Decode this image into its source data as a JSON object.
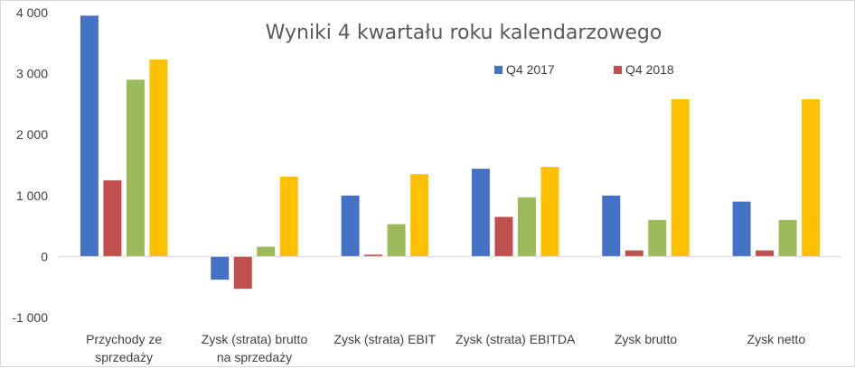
{
  "chart_data": {
    "type": "bar",
    "title": "Wyniki 4 kwartału roku kalendarzowego",
    "categories": [
      [
        "Przychody ze",
        "sprzedaży"
      ],
      [
        "Zysk (strata) brutto",
        "na sprzedaży"
      ],
      [
        "Zysk (strata) EBIT"
      ],
      [
        "Zysk (strata) EBITDA"
      ],
      [
        "Zysk brutto"
      ],
      [
        "Zysk netto"
      ]
    ],
    "series": [
      {
        "name": "Q4 2017",
        "color": "#4472c4",
        "values": [
          3950,
          -380,
          1000,
          1440,
          1000,
          900
        ]
      },
      {
        "color": "#c0504d",
        "name": "Q4 2018",
        "values": [
          1250,
          -530,
          30,
          650,
          100,
          100
        ]
      },
      {
        "color": "#9bbb59",
        "values": [
          2900,
          160,
          530,
          970,
          600,
          600
        ]
      },
      {
        "color": "#ffc000",
        "values": [
          3230,
          1310,
          1350,
          1470,
          2580,
          2580
        ]
      }
    ],
    "ylim": [
      -1000,
      4000
    ],
    "yticks": [
      -1000,
      0,
      1000,
      2000,
      3000,
      4000
    ],
    "ytick_labels": [
      "-1 000",
      "0",
      "1 000",
      "2 000",
      "3 000",
      "4 000"
    ],
    "grid": false,
    "legend_position": "top-right"
  }
}
